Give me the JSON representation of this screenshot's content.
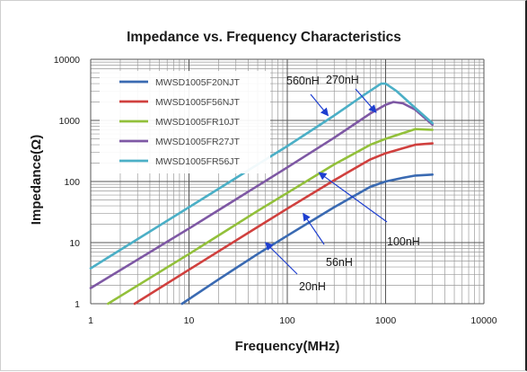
{
  "chart_data": {
    "type": "line",
    "title": "Impedance vs. Frequency Characteristics",
    "xlabel": "Frequency(MHz)",
    "ylabel": "Impedance(Ω)",
    "x_scale": "log",
    "y_scale": "log",
    "xlim": [
      1,
      10000
    ],
    "ylim": [
      1,
      10000
    ],
    "x_ticks": [
      "1",
      "10",
      "100",
      "1000",
      "10000"
    ],
    "y_ticks": [
      "10000",
      "1000",
      "100",
      "10",
      "1"
    ],
    "grid": true,
    "legend_position": "top-left",
    "series": [
      {
        "name": "MWSD1005F20NJT",
        "color": "#3a6ab2",
        "points": [
          [
            8.5,
            1
          ],
          [
            20,
            2.5
          ],
          [
            50,
            6.5
          ],
          [
            100,
            13
          ],
          [
            300,
            38
          ],
          [
            700,
            82
          ],
          [
            1000,
            100
          ],
          [
            1500,
            115
          ],
          [
            2000,
            125
          ],
          [
            3000,
            130
          ]
        ]
      },
      {
        "name": "MWSD1005F56NJT",
        "color": "#d0403e",
        "points": [
          [
            2.8,
            1
          ],
          [
            10,
            3.6
          ],
          [
            50,
            18
          ],
          [
            100,
            36
          ],
          [
            300,
            105
          ],
          [
            700,
            230
          ],
          [
            1000,
            290
          ],
          [
            1500,
            350
          ],
          [
            2000,
            400
          ],
          [
            3000,
            420
          ]
        ]
      },
      {
        "name": "MWSD1005FR10JT",
        "color": "#92c03a",
        "points": [
          [
            1.5,
            1
          ],
          [
            10,
            6.5
          ],
          [
            50,
            33
          ],
          [
            100,
            65
          ],
          [
            300,
            190
          ],
          [
            700,
            400
          ],
          [
            1000,
            500
          ],
          [
            1500,
            620
          ],
          [
            2000,
            720
          ],
          [
            3000,
            700
          ]
        ]
      },
      {
        "name": "MWSD1005FR27JT",
        "color": "#7e58a4",
        "points": [
          [
            1,
            1.8
          ],
          [
            10,
            17
          ],
          [
            50,
            85
          ],
          [
            100,
            170
          ],
          [
            300,
            520
          ],
          [
            700,
            1300
          ],
          [
            1000,
            1800
          ],
          [
            1200,
            2000
          ],
          [
            1500,
            1900
          ],
          [
            2000,
            1500
          ],
          [
            3000,
            850
          ]
        ]
      },
      {
        "name": "MWSD1005FR56JT",
        "color": "#4bafc6",
        "points": [
          [
            1,
            3.8
          ],
          [
            10,
            38
          ],
          [
            50,
            190
          ],
          [
            100,
            380
          ],
          [
            300,
            1200
          ],
          [
            600,
            2600
          ],
          [
            900,
            4000
          ],
          [
            1000,
            4000
          ],
          [
            1300,
            3000
          ],
          [
            2000,
            1600
          ],
          [
            3000,
            900
          ]
        ]
      }
    ],
    "annotations": [
      {
        "text": "560nH",
        "tip": [
          260,
          1200
        ]
      },
      {
        "text": "270nH",
        "tip": [
          800,
          1350
        ]
      },
      {
        "text": "100nH",
        "tip": [
          210,
          140
        ]
      },
      {
        "text": "56nH",
        "tip": [
          145,
          30
        ]
      },
      {
        "text": "20nH",
        "tip": [
          60,
          10
        ]
      }
    ]
  }
}
